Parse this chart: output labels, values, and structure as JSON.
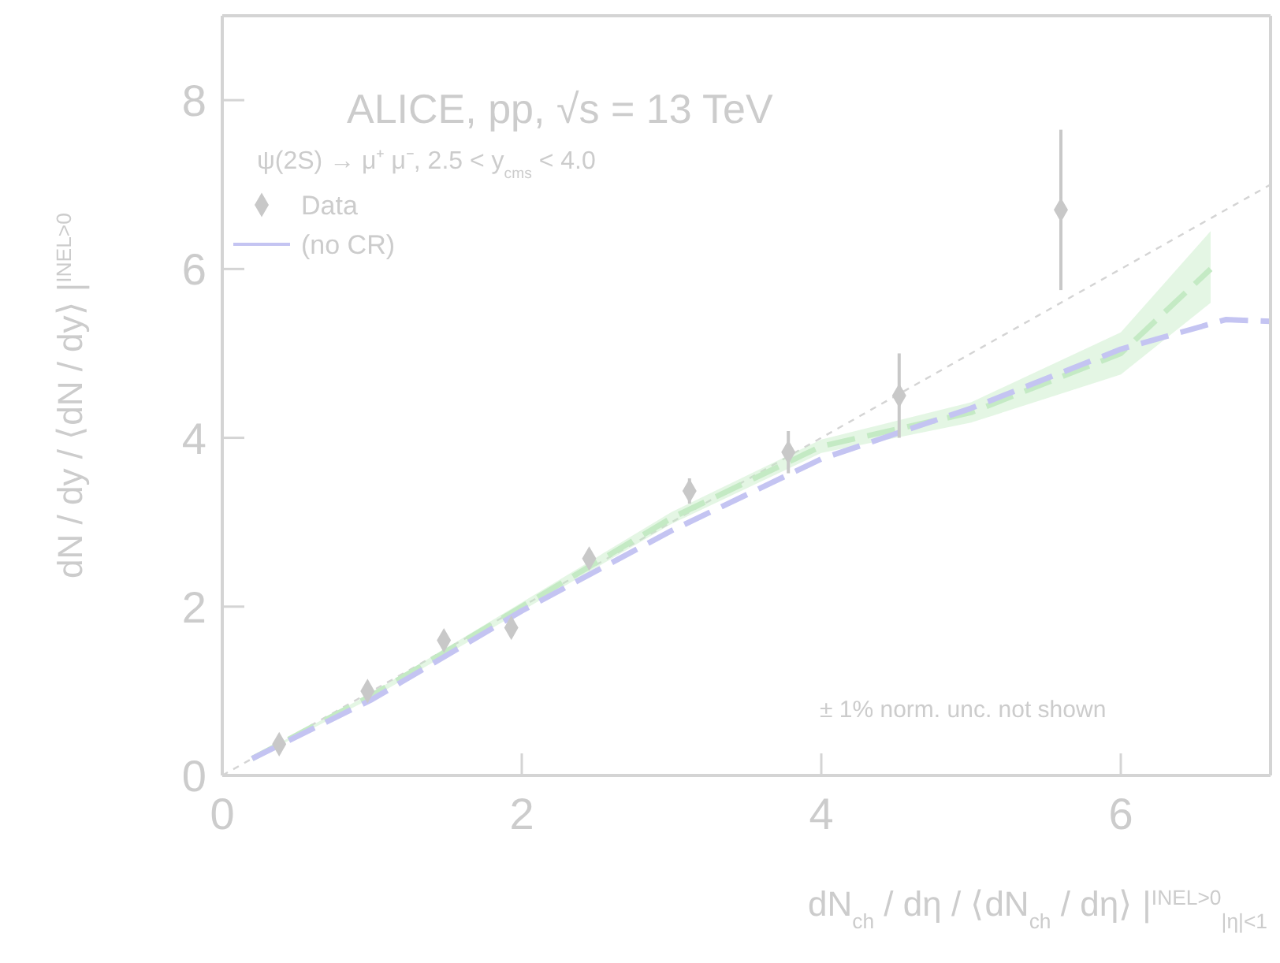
{
  "chart_data": {
    "type": "scatter",
    "annotations": [
      "ALICE, pp, √s = 13 TeV",
      "ψ(2S) → μ⁺ μ⁻, 2.5 < y$_{cms}$ < 4.0",
      "± 1% norm. unc. not shown"
    ],
    "xlabel": "dN$_{ch}$ / dη / ⟨dN$_{ch}$ / dη⟩ |$^{INEL>0}$$_{|η|<1}$",
    "ylabel": "dN / dy / ⟨dN / dy⟩ |$^{INEL>0}$",
    "xlim": [
      0,
      7
    ],
    "ylim": [
      0,
      9
    ],
    "xticks": [
      0,
      2,
      4,
      6
    ],
    "yticks": [
      0,
      2,
      4,
      6,
      8
    ],
    "legend": "top left",
    "series": [
      {
        "type": "line",
        "color": "#d4d4d4",
        "line_style": "dotted",
        "marker": "none",
        "x": [
          0,
          7
        ],
        "values": [
          0,
          7
        ]
      },
      {
        "type": "line",
        "color": "#c4eac4",
        "line_style": "dashed",
        "marker": "none",
        "x": [
          0.2,
          1,
          2,
          3,
          4,
          5,
          6,
          6.6
        ],
        "values": [
          0.2,
          0.95,
          2.0,
          3.05,
          3.9,
          4.3,
          5.0,
          6.0
        ],
        "lower": [
          0.19,
          0.92,
          1.95,
          2.98,
          3.82,
          4.18,
          4.75,
          5.6
        ],
        "upper": [
          0.21,
          0.98,
          2.05,
          3.12,
          3.98,
          4.42,
          5.25,
          6.45
        ]
      },
      {
        "type": "line",
        "name": "(no CR)",
        "color": "#c4c4f2",
        "line_style": "dashed",
        "marker": "none",
        "x": [
          0.2,
          1,
          2,
          3,
          4,
          5,
          6,
          6.7,
          7
        ],
        "values": [
          0.2,
          0.9,
          1.95,
          2.9,
          3.75,
          4.35,
          5.05,
          5.4,
          5.38
        ]
      },
      {
        "name": "Data",
        "color": "#c8c8c8",
        "marker": "diamond",
        "x": [
          0.38,
          0.97,
          1.48,
          1.93,
          2.45,
          3.12,
          3.78,
          4.52,
          5.6
        ],
        "values": [
          0.37,
          1.0,
          1.6,
          1.75,
          2.57,
          3.37,
          3.83,
          4.5,
          6.7
        ],
        "errors": [
          0.05,
          0.07,
          0.07,
          0.07,
          0.1,
          0.15,
          0.25,
          0.5,
          0.95
        ]
      }
    ]
  }
}
